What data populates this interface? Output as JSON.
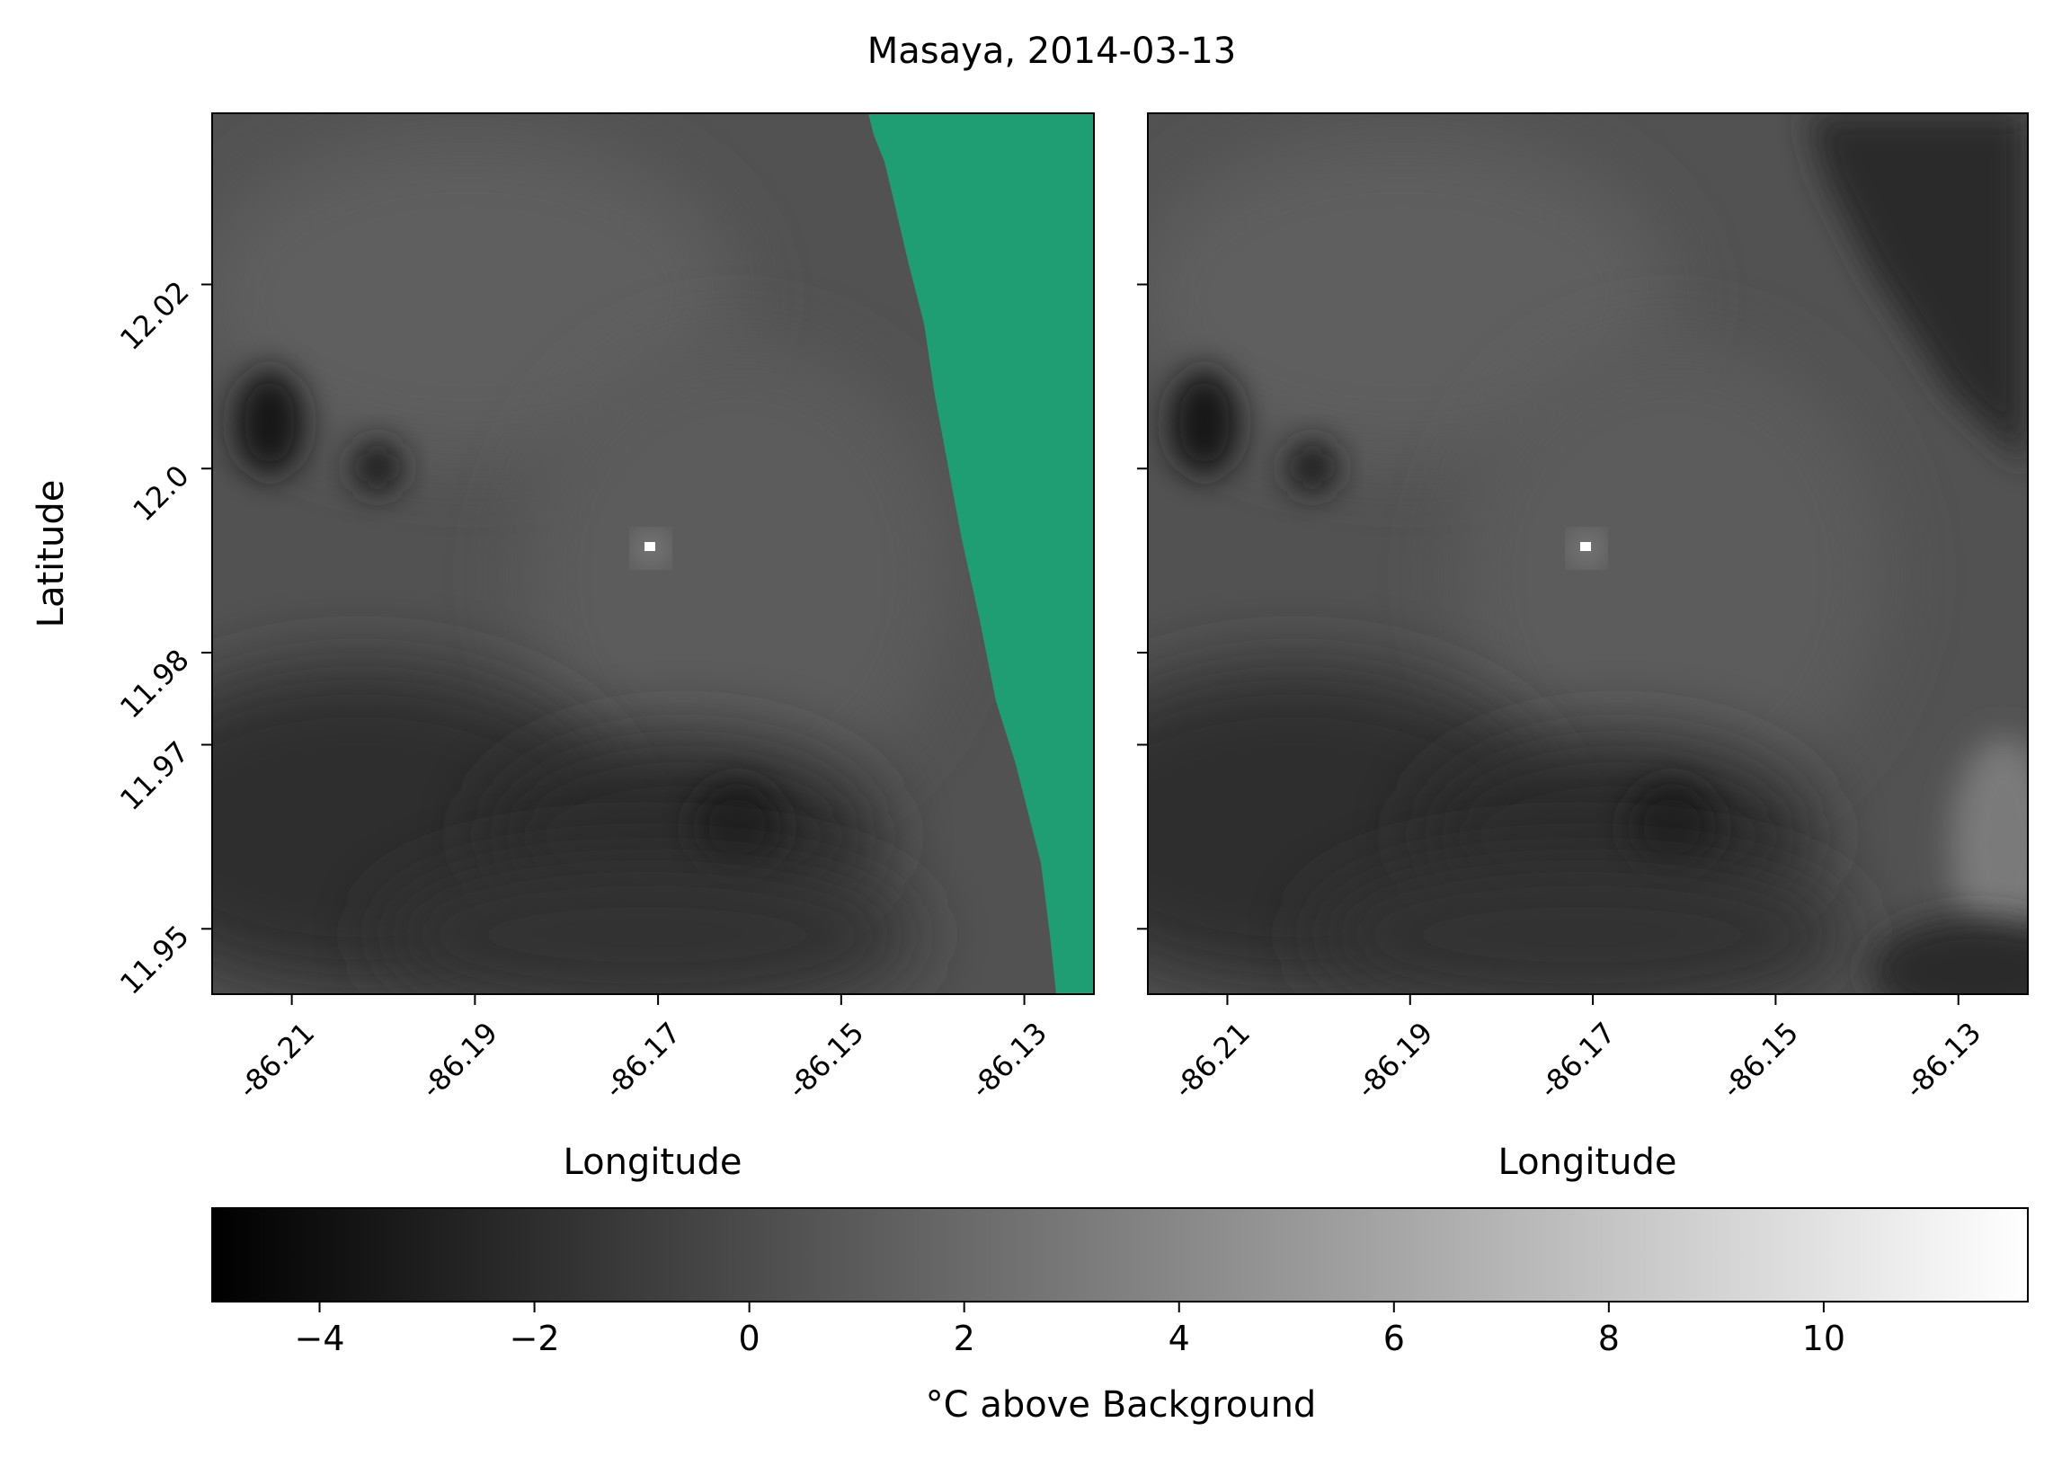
{
  "title": "Masaya, 2014-03-13",
  "chart_data": [
    {
      "type": "heatmap",
      "panel": "left",
      "xlabel": "Longitude",
      "ylabel": "Latitude",
      "x_ticks": [
        -86.21,
        -86.19,
        -86.17,
        -86.15,
        -86.13
      ],
      "x_tick_labels": [
        "-86.21",
        "-86.19",
        "-86.17",
        "-86.15",
        "-86.13"
      ],
      "y_ticks": [
        12.02,
        12.0,
        11.98,
        11.97,
        11.95
      ],
      "y_tick_labels": [
        "12.02",
        "12.0",
        "11.98",
        "11.97",
        "11.95"
      ],
      "xlim": [
        -86.2187,
        -86.1224
      ],
      "ylim": [
        11.9429,
        12.0386
      ],
      "mask_color": "#1f9e74",
      "mask_boundary_lon_by_lat": [
        {
          "lat": 12.0386,
          "lon": -86.1467
        },
        {
          "lat": 12.025,
          "lon": -86.1448
        },
        {
          "lat": 12.0,
          "lon": -86.14
        },
        {
          "lat": 11.98,
          "lon": -86.1362
        },
        {
          "lat": 11.97,
          "lon": -86.133
        },
        {
          "lat": 11.955,
          "lon": -86.131
        },
        {
          "lat": 11.9429,
          "lon": -86.1297
        }
      ],
      "hotspot": {
        "lon": -86.171,
        "lat": 11.9805,
        "value": 11
      }
    },
    {
      "type": "heatmap",
      "panel": "right",
      "xlabel": "Longitude",
      "ylabel": "",
      "x_ticks": [
        -86.21,
        -86.19,
        -86.17,
        -86.15,
        -86.13
      ],
      "x_tick_labels": [
        "-86.21",
        "-86.19",
        "-86.17",
        "-86.15",
        "-86.13"
      ],
      "y_ticks": [
        12.02,
        12.0,
        11.98,
        11.97,
        11.95
      ],
      "xlim": [
        -86.2187,
        -86.1224
      ],
      "ylim": [
        11.9429,
        12.0386
      ],
      "hotspot": {
        "lon": -86.171,
        "lat": 11.9805,
        "value": 11
      }
    }
  ],
  "colorbar": {
    "label": "$^\\circ$C above Background",
    "label_display": "°C above Background",
    "range": [
      -5,
      11.9
    ],
    "ticks": [
      -4,
      -2,
      0,
      2,
      4,
      6,
      8,
      10
    ],
    "tick_labels": [
      "−4",
      "−2",
      "0",
      "2",
      "4",
      "6",
      "8",
      "10"
    ],
    "colormap": "gray"
  }
}
